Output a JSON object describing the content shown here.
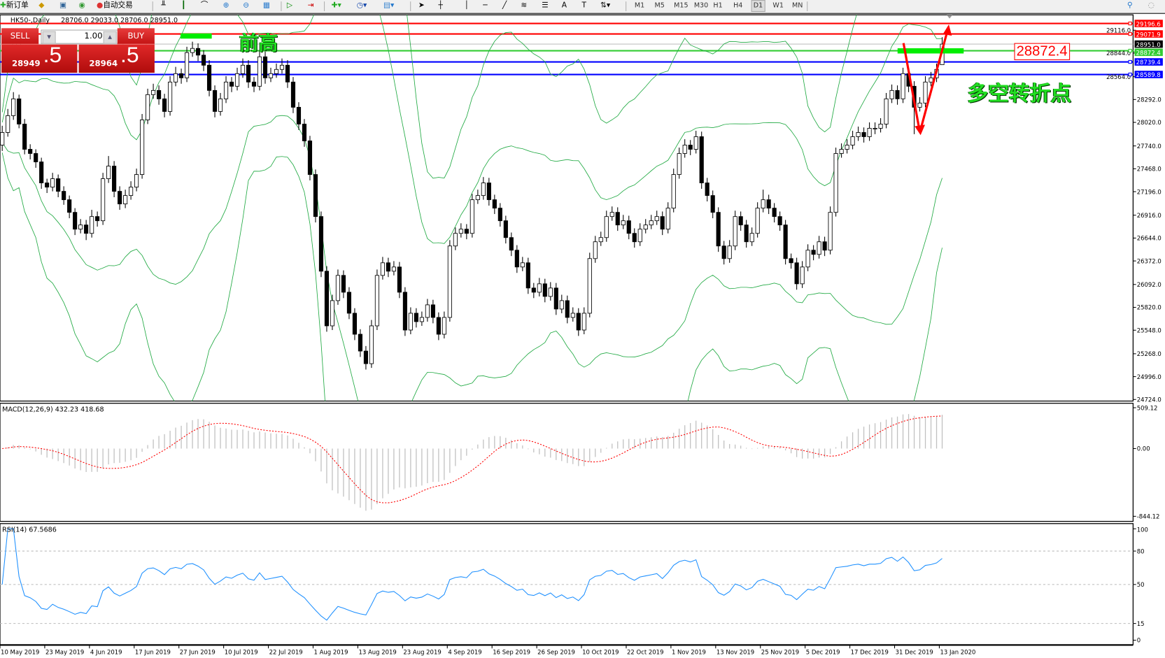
{
  "toolbar": {
    "new_order": "新订单",
    "auto_trading": "自动交易",
    "icons": [
      "new-order-icon",
      "history-icon",
      "terminal-icon",
      "signal-icon",
      "auto-trading-icon",
      "bar-chart-icon",
      "candle-chart-icon",
      "line-chart-icon",
      "zoom-in-icon",
      "zoom-out-icon",
      "tile-windows-icon",
      "autoscroll-icon",
      "chart-shift-icon",
      "indicators-icon",
      "periods-icon",
      "templates-icon",
      "cursor-icon",
      "crosshair-icon",
      "vertical-line-icon",
      "horizontal-line-icon",
      "trendline-icon",
      "fibonacci-icon",
      "fibo-fan-icon",
      "text-icon",
      "text-label-icon",
      "arrows-icon",
      "search-icon",
      "chat-icon"
    ],
    "timeframes": [
      "M1",
      "M5",
      "M15",
      "M30",
      "H1",
      "H4",
      "D1",
      "W1",
      "MN"
    ],
    "selected_timeframe": "D1",
    "text_tool": "A",
    "label_tool": "T"
  },
  "chart_header": {
    "symbol": "HK50-,Daily",
    "values": "28706.0 29033.0 28706.0 28951.0"
  },
  "trade_panel": {
    "sell_label": "SELL",
    "buy_label": "BUY",
    "lot": "1.00",
    "sell_main": "28949",
    "sell_frac": ".5",
    "buy_main": "28964",
    "buy_frac": ".5",
    "color": "#d42020"
  },
  "price_axis": {
    "ticks": [
      29116.0,
      28844.0,
      28564.0,
      28292.0,
      28020.0,
      27740.0,
      27468.0,
      27196.0,
      26916.0,
      26644.0,
      26372.0,
      26092.0,
      25820.0,
      25548.0,
      25268.0,
      24996.0,
      24724.0
    ]
  },
  "levels": [
    {
      "price": 29196.6,
      "label": "29196.6",
      "color": "#ff0000"
    },
    {
      "price": 29071.9,
      "label": "29071.9",
      "color": "#ff0000"
    },
    {
      "price": 28951.0,
      "label": "28951.0",
      "color": "#c0c0c0",
      "label_bg": "#000000"
    },
    {
      "price": 28872.4,
      "label": "28872.4",
      "color": "#33cc33"
    },
    {
      "price": 28739.4,
      "label": "28739.4",
      "color": "#0000ff"
    },
    {
      "price": 28589.8,
      "label": "28589.8",
      "color": "#0000ff"
    }
  ],
  "annotations": {
    "prev_high": "前高",
    "turning_point": "多空转折点",
    "price_label": "28872.4",
    "highlight_color": "#00ee00",
    "arrow_color": "#ff0000"
  },
  "macd": {
    "label": "MACD(12,26,9) 432.23 418.68",
    "scale": [
      "509.12",
      "0.00",
      "-844.12"
    ],
    "max": 509.12,
    "min": -844.12
  },
  "rsi": {
    "label": "RSI(14) 67.5686",
    "scale": [
      "100",
      "80",
      "50",
      "15",
      "0"
    ],
    "levels": [
      80,
      50,
      15
    ]
  },
  "dates": [
    "10 May 2019",
    "23 May 2019",
    "4 Jun 2019",
    "17 Jun 2019",
    "27 Jun 2019",
    "10 Jul 2019",
    "22 Jul 2019",
    "1 Aug 2019",
    "13 Aug 2019",
    "23 Aug 2019",
    "4 Sep 2019",
    "16 Sep 2019",
    "26 Sep 2019",
    "10 Oct 2019",
    "22 Oct 2019",
    "1 Nov 2019",
    "13 Nov 2019",
    "25 Nov 2019",
    "5 Dec 2019",
    "17 Dec 2019",
    "31 Dec 2019",
    "13 Jan 2020"
  ],
  "chart_data": {
    "type": "candlestick",
    "symbol": "HK50-",
    "timeframe": "Daily",
    "ylim": [
      24724,
      29250
    ],
    "indicators": [
      "Bollinger Bands",
      "MACD(12,26,9)",
      "RSI(14)"
    ],
    "colors": {
      "bands": "#22aa44",
      "macd_hist": "#c0c0c0",
      "macd_signal": "#ff0000",
      "rsi": "#1e90ff"
    },
    "ohlc": [
      [
        27750,
        27980,
        27680,
        27900
      ],
      [
        27900,
        28180,
        27850,
        28100
      ],
      [
        28100,
        28380,
        28050,
        28300
      ],
      [
        28300,
        28350,
        27950,
        28000
      ],
      [
        28000,
        28060,
        27640,
        27700
      ],
      [
        27700,
        27760,
        27580,
        27650
      ],
      [
        27650,
        27700,
        27480,
        27550
      ],
      [
        27550,
        27600,
        27230,
        27300
      ],
      [
        27300,
        27350,
        27180,
        27250
      ],
      [
        27250,
        27420,
        27200,
        27350
      ],
      [
        27350,
        27400,
        27130,
        27200
      ],
      [
        27200,
        27260,
        27040,
        27100
      ],
      [
        27100,
        27150,
        26880,
        26950
      ],
      [
        26950,
        27000,
        26680,
        26750
      ],
      [
        26750,
        26870,
        26700,
        26800
      ],
      [
        26800,
        26860,
        26620,
        26700
      ],
      [
        26700,
        26980,
        26650,
        26900
      ],
      [
        26900,
        26960,
        26780,
        26850
      ],
      [
        26850,
        27420,
        26800,
        27350
      ],
      [
        27350,
        27620,
        27300,
        27500
      ],
      [
        27500,
        27560,
        27130,
        27200
      ],
      [
        27200,
        27260,
        26980,
        27050
      ],
      [
        27050,
        27220,
        27000,
        27150
      ],
      [
        27150,
        27320,
        27100,
        27250
      ],
      [
        27250,
        27470,
        27200,
        27400
      ],
      [
        27400,
        28120,
        27350,
        28050
      ],
      [
        28050,
        28420,
        28000,
        28350
      ],
      [
        28350,
        28480,
        28300,
        28400
      ],
      [
        28400,
        28460,
        28230,
        28300
      ],
      [
        28300,
        28360,
        28080,
        28150
      ],
      [
        28150,
        28570,
        28100,
        28500
      ],
      [
        28500,
        28680,
        28450,
        28600
      ],
      [
        28600,
        28660,
        28480,
        28550
      ],
      [
        28550,
        28920,
        28500,
        28850
      ],
      [
        28850,
        28980,
        28800,
        28900
      ],
      [
        28900,
        28960,
        28750,
        28820
      ],
      [
        28820,
        28880,
        28630,
        28700
      ],
      [
        28700,
        28760,
        28330,
        28400
      ],
      [
        28400,
        28460,
        28080,
        28150
      ],
      [
        28150,
        28370,
        28100,
        28300
      ],
      [
        28300,
        28570,
        28250,
        28500
      ],
      [
        28500,
        28560,
        28380,
        28450
      ],
      [
        28450,
        28670,
        28400,
        28600
      ],
      [
        28600,
        28780,
        28550,
        28700
      ],
      [
        28700,
        28760,
        28430,
        28500
      ],
      [
        28500,
        28560,
        28380,
        28450
      ],
      [
        28450,
        28880,
        28400,
        28800
      ],
      [
        28800,
        28860,
        28480,
        28550
      ],
      [
        28550,
        28670,
        28500,
        28600
      ],
      [
        28600,
        28720,
        28550,
        28650
      ],
      [
        28650,
        28780,
        28600,
        28700
      ],
      [
        28700,
        28760,
        28430,
        28500
      ],
      [
        28500,
        28560,
        28130,
        28200
      ],
      [
        28200,
        28260,
        27930,
        28000
      ],
      [
        28000,
        28060,
        27730,
        27800
      ],
      [
        27800,
        27860,
        27330,
        27400
      ],
      [
        27400,
        27460,
        26830,
        26900
      ],
      [
        26900,
        26960,
        26180,
        26250
      ],
      [
        26250,
        26310,
        25530,
        25600
      ],
      [
        25600,
        25970,
        25550,
        25900
      ],
      [
        25900,
        26270,
        25850,
        26200
      ],
      [
        26200,
        26260,
        25930,
        26000
      ],
      [
        26000,
        26060,
        25680,
        25750
      ],
      [
        25750,
        25810,
        25430,
        25500
      ],
      [
        25500,
        25560,
        25230,
        25300
      ],
      [
        25300,
        25360,
        25080,
        25150
      ],
      [
        25150,
        25670,
        25100,
        25600
      ],
      [
        25600,
        26270,
        25550,
        26200
      ],
      [
        26200,
        26420,
        26150,
        26350
      ],
      [
        26350,
        26410,
        26180,
        26250
      ],
      [
        26250,
        26370,
        26200,
        26300
      ],
      [
        26300,
        26360,
        25930,
        26000
      ],
      [
        26000,
        26060,
        25480,
        25550
      ],
      [
        25550,
        25820,
        25500,
        25750
      ],
      [
        25750,
        25810,
        25580,
        25650
      ],
      [
        25650,
        25770,
        25600,
        25700
      ],
      [
        25700,
        25920,
        25650,
        25850
      ],
      [
        25850,
        25910,
        25630,
        25700
      ],
      [
        25700,
        25760,
        25430,
        25500
      ],
      [
        25500,
        25770,
        25450,
        25700
      ],
      [
        25700,
        26620,
        25650,
        26550
      ],
      [
        26550,
        26770,
        26500,
        26700
      ],
      [
        26700,
        26820,
        26650,
        26750
      ],
      [
        26750,
        26810,
        26630,
        26700
      ],
      [
        26700,
        27170,
        26650,
        27100
      ],
      [
        27100,
        27220,
        27050,
        27150
      ],
      [
        27150,
        27370,
        27100,
        27300
      ],
      [
        27300,
        27360,
        27030,
        27100
      ],
      [
        27100,
        27160,
        26930,
        27000
      ],
      [
        27000,
        27060,
        26780,
        26850
      ],
      [
        26850,
        26910,
        26580,
        26650
      ],
      [
        26650,
        26710,
        26430,
        26500
      ],
      [
        26500,
        26560,
        26230,
        26300
      ],
      [
        26300,
        26420,
        26250,
        26350
      ],
      [
        26350,
        26410,
        25980,
        26050
      ],
      [
        26050,
        26110,
        25930,
        26000
      ],
      [
        26000,
        26170,
        25950,
        26100
      ],
      [
        26100,
        26160,
        25880,
        25950
      ],
      [
        25950,
        26120,
        25900,
        26050
      ],
      [
        26050,
        26110,
        25730,
        25800
      ],
      [
        25800,
        25970,
        25750,
        25900
      ],
      [
        25900,
        25960,
        25630,
        25700
      ],
      [
        25700,
        25820,
        25650,
        25750
      ],
      [
        25750,
        25810,
        25480,
        25550
      ],
      [
        25550,
        25820,
        25500,
        25750
      ],
      [
        25750,
        26470,
        25700,
        26400
      ],
      [
        26400,
        26670,
        26350,
        26600
      ],
      [
        26600,
        26720,
        26550,
        26650
      ],
      [
        26650,
        26970,
        26600,
        26900
      ],
      [
        26900,
        27020,
        26850,
        26950
      ],
      [
        26950,
        27010,
        26730,
        26800
      ],
      [
        26800,
        26920,
        26750,
        26850
      ],
      [
        26850,
        26910,
        26630,
        26700
      ],
      [
        26700,
        26760,
        26530,
        26600
      ],
      [
        26600,
        26820,
        26550,
        26750
      ],
      [
        26750,
        26870,
        26700,
        26800
      ],
      [
        26800,
        26920,
        26750,
        26850
      ],
      [
        26850,
        26970,
        26800,
        26900
      ],
      [
        26900,
        26960,
        26680,
        26750
      ],
      [
        26750,
        27070,
        26700,
        27000
      ],
      [
        27000,
        27470,
        26950,
        27400
      ],
      [
        27400,
        27720,
        27350,
        27650
      ],
      [
        27650,
        27820,
        27600,
        27750
      ],
      [
        27750,
        27810,
        27630,
        27700
      ],
      [
        27700,
        27920,
        27650,
        27850
      ],
      [
        27850,
        27910,
        27230,
        27300
      ],
      [
        27300,
        27360,
        27080,
        27150
      ],
      [
        27150,
        27210,
        26880,
        26950
      ],
      [
        26950,
        27010,
        26480,
        26550
      ],
      [
        26550,
        26610,
        26330,
        26400
      ],
      [
        26400,
        26620,
        26350,
        26550
      ],
      [
        26550,
        26970,
        26500,
        26900
      ],
      [
        26900,
        26960,
        26730,
        26800
      ],
      [
        26800,
        26860,
        26530,
        26600
      ],
      [
        26600,
        26770,
        26550,
        26700
      ],
      [
        26700,
        27070,
        26650,
        27000
      ],
      [
        27000,
        27220,
        26950,
        27100
      ],
      [
        27100,
        27160,
        26930,
        27000
      ],
      [
        27000,
        27060,
        26830,
        26900
      ],
      [
        26900,
        26960,
        26730,
        26800
      ],
      [
        26800,
        26860,
        26330,
        26400
      ],
      [
        26400,
        26460,
        26280,
        26350
      ],
      [
        26350,
        26410,
        26030,
        26100
      ],
      [
        26100,
        26370,
        26050,
        26300
      ],
      [
        26300,
        26570,
        26250,
        26500
      ],
      [
        26500,
        26560,
        26380,
        26450
      ],
      [
        26450,
        26670,
        26400,
        26600
      ],
      [
        26600,
        26660,
        26430,
        26500
      ],
      [
        26500,
        27020,
        26450,
        26950
      ],
      [
        26950,
        27720,
        26900,
        27650
      ],
      [
        27650,
        27770,
        27600,
        27700
      ],
      [
        27700,
        27820,
        27650,
        27750
      ],
      [
        27750,
        27920,
        27700,
        27850
      ],
      [
        27850,
        27970,
        27800,
        27900
      ],
      [
        27900,
        27960,
        27780,
        27850
      ],
      [
        27850,
        28020,
        27800,
        27950
      ],
      [
        27950,
        28020,
        27880,
        27950
      ],
      [
        27950,
        28070,
        27900,
        28000
      ],
      [
        28000,
        28370,
        27950,
        28300
      ],
      [
        28300,
        28470,
        28250,
        28400
      ],
      [
        28400,
        28460,
        28230,
        28300
      ],
      [
        28300,
        28670,
        28250,
        28600
      ],
      [
        28600,
        28660,
        28380,
        28450
      ],
      [
        28450,
        28510,
        27880,
        28200
      ],
      [
        28200,
        28320,
        28150,
        28250
      ],
      [
        28250,
        28570,
        28200,
        28500
      ],
      [
        28500,
        28620,
        28450,
        28550
      ],
      [
        28550,
        28720,
        28500,
        28650
      ],
      [
        28706,
        29033,
        28706,
        28951
      ]
    ]
  }
}
